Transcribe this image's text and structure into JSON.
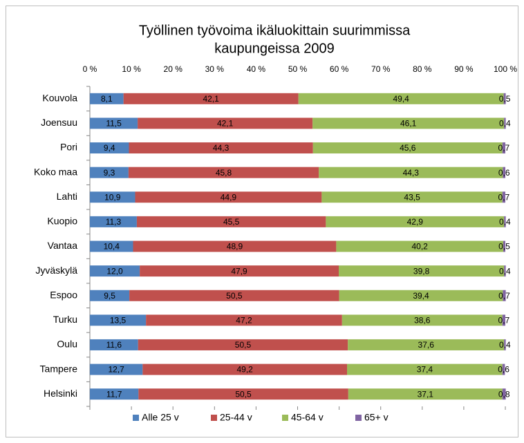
{
  "chart_data": {
    "type": "stacked_bar_horizontal",
    "title": [
      "Työllinen työvoima ikäluokittain suurimmissa",
      "kaupungeissa 2009"
    ],
    "categories": [
      "Kouvola",
      "Joensuu",
      "Pori",
      "Koko maa",
      "Lahti",
      "Kuopio",
      "Vantaa",
      "Jyväskylä",
      "Espoo",
      "Turku",
      "Oulu",
      "Tampere",
      "Helsinki"
    ],
    "series": [
      {
        "name": "Alle 25 v",
        "color": "#4f81bd",
        "values": [
          8.1,
          11.5,
          9.4,
          9.3,
          10.9,
          11.3,
          10.4,
          12.0,
          9.5,
          13.5,
          11.6,
          12.7,
          11.7
        ],
        "value_labels": [
          "8,1",
          "11,5",
          "9,4",
          "9,3",
          "10,9",
          "11,3",
          "10,4",
          "12,0",
          "9,5",
          "13,5",
          "11,6",
          "12,7",
          "11,7"
        ]
      },
      {
        "name": "25-44 v",
        "color": "#c0504d",
        "values": [
          42.1,
          42.1,
          44.3,
          45.8,
          44.9,
          45.5,
          48.9,
          47.9,
          50.5,
          47.2,
          50.5,
          49.2,
          50.5
        ],
        "value_labels": [
          "42,1",
          "42,1",
          "44,3",
          "45,8",
          "44,9",
          "45,5",
          "48,9",
          "47,9",
          "50,5",
          "47,2",
          "50,5",
          "49,2",
          "50,5"
        ]
      },
      {
        "name": "45-64 v",
        "color": "#9bbb59",
        "values": [
          49.4,
          46.1,
          45.6,
          44.3,
          43.5,
          42.9,
          40.2,
          39.8,
          39.4,
          38.6,
          37.6,
          37.4,
          37.1
        ],
        "value_labels": [
          "49,4",
          "46,1",
          "45,6",
          "44,3",
          "43,5",
          "42,9",
          "40,2",
          "39,8",
          "39,4",
          "38,6",
          "37,6",
          "37,4",
          "37,1"
        ]
      },
      {
        "name": "65+ v",
        "color": "#8064a2",
        "values": [
          0.5,
          0.4,
          0.7,
          0.6,
          0.7,
          0.4,
          0.5,
          0.4,
          0.7,
          0.7,
          0.4,
          0.6,
          0.8
        ],
        "value_labels": [
          "0,5",
          "0,4",
          "0,7",
          "0,6",
          "0,7",
          "0,4",
          "0,5",
          "0,4",
          "0,7",
          "0,7",
          "0,4",
          "0,6",
          "0,8"
        ]
      }
    ],
    "xlim": [
      0,
      100
    ],
    "xticks": [
      {
        "value": 0,
        "label": "0 %"
      },
      {
        "value": 10,
        "label": "10 %"
      },
      {
        "value": 20,
        "label": "20 %"
      },
      {
        "value": 30,
        "label": "30 %"
      },
      {
        "value": 40,
        "label": "40 %"
      },
      {
        "value": 50,
        "label": "50 %"
      },
      {
        "value": 60,
        "label": "60 %"
      },
      {
        "value": 70,
        "label": "70 %"
      },
      {
        "value": 80,
        "label": "80 %"
      },
      {
        "value": 90,
        "label": "90 %"
      },
      {
        "value": 100,
        "label": "100 %"
      }
    ],
    "legend": "bottom"
  }
}
